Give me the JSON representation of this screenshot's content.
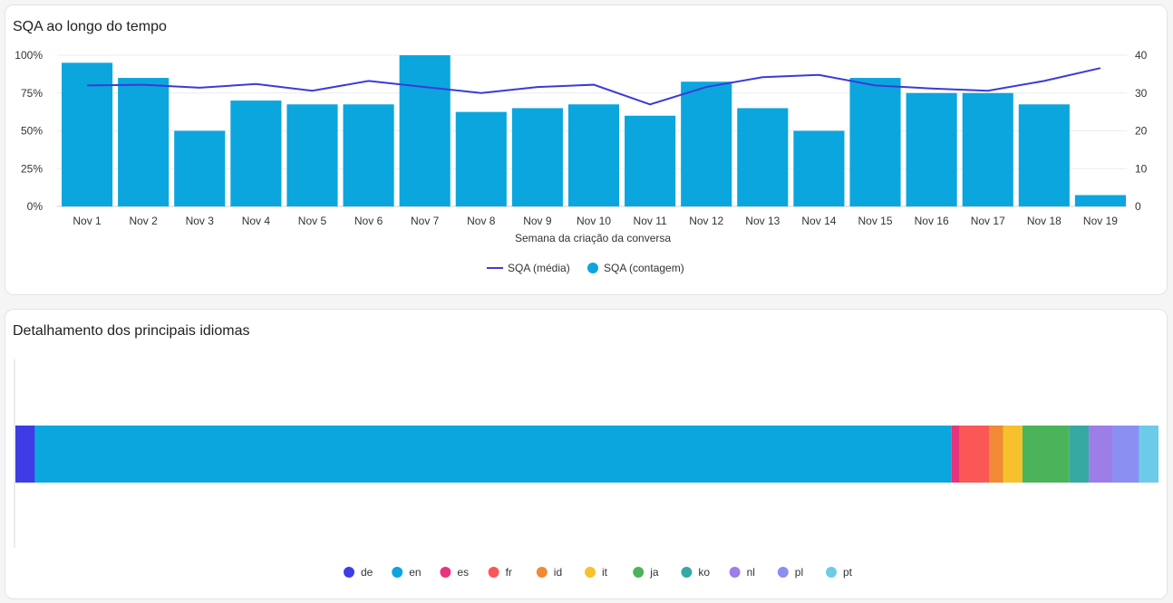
{
  "sqa_card": {
    "title": "SQA ao longo do tempo"
  },
  "langs_card": {
    "title": "Detalhamento dos principais idiomas"
  },
  "chart_data": [
    {
      "type": "bar+line",
      "title": "SQA ao longo do tempo",
      "xlabel": "Semana da criação da conversa",
      "categories": [
        "Nov 1",
        "Nov 2",
        "Nov 3",
        "Nov 4",
        "Nov 5",
        "Nov 6",
        "Nov 7",
        "Nov 8",
        "Nov 9",
        "Nov 10",
        "Nov 11",
        "Nov 12",
        "Nov 13",
        "Nov 14",
        "Nov 15",
        "Nov 16",
        "Nov 17",
        "Nov 18",
        "Nov 19"
      ],
      "left_axis": {
        "ticks": [
          "0%",
          "25%",
          "50%",
          "75%",
          "100%"
        ],
        "range": [
          0,
          100
        ]
      },
      "right_axis": {
        "ticks": [
          "0",
          "10",
          "20",
          "30",
          "40"
        ],
        "range": [
          0,
          40
        ]
      },
      "grid": true,
      "legend_position": "bottom",
      "series": [
        {
          "name": "SQA (média)",
          "type": "line",
          "axis": "left",
          "color": "#3d3ad8",
          "values": [
            80,
            80.5,
            78.5,
            81,
            76.5,
            83,
            79,
            75,
            79,
            80.5,
            67.5,
            79,
            85.5,
            87,
            80,
            78,
            76.5,
            83,
            91.5
          ]
        },
        {
          "name": "SQA (contagem)",
          "type": "bar",
          "axis": "right",
          "color": "#0aa6dd",
          "values": [
            38,
            34,
            20,
            28,
            27,
            27,
            40,
            25,
            26,
            27,
            24,
            33,
            26,
            20,
            34,
            30,
            30,
            27,
            3
          ]
        }
      ]
    },
    {
      "type": "stacked-bar-horizontal",
      "title": "Detalhamento dos principais idiomas",
      "legend_position": "bottom",
      "series": [
        {
          "name": "de",
          "value": 1.7,
          "color": "#3e3ce6"
        },
        {
          "name": "en",
          "value": 80.2,
          "color": "#0aa6dd"
        },
        {
          "name": "es",
          "value": 0.7,
          "color": "#e8347a"
        },
        {
          "name": "fr",
          "value": 2.6,
          "color": "#fb5757"
        },
        {
          "name": "id",
          "value": 1.2,
          "color": "#f08a35"
        },
        {
          "name": "it",
          "value": 1.7,
          "color": "#f7c12e"
        },
        {
          "name": "ja",
          "value": 4.1,
          "color": "#4bb45a"
        },
        {
          "name": "ko",
          "value": 1.7,
          "color": "#35aaa3"
        },
        {
          "name": "nl",
          "value": 2.1,
          "color": "#9d7de8"
        },
        {
          "name": "pl",
          "value": 2.3,
          "color": "#8b8ff2"
        },
        {
          "name": "pt",
          "value": 1.7,
          "color": "#6ccbe8"
        }
      ]
    }
  ]
}
